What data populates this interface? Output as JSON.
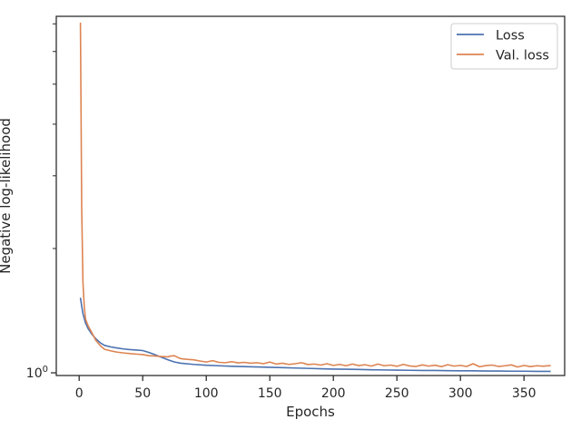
{
  "chart_data": {
    "type": "line",
    "title": "",
    "xlabel": "Epochs",
    "ylabel": "Negative log-likelihood",
    "xlim": [
      -18,
      382
    ],
    "x_ticks": [
      0,
      50,
      100,
      150,
      200,
      250,
      300,
      350
    ],
    "y_scale": "log",
    "ylim": [
      0.985,
      7.3
    ],
    "y_major_ticks": [
      {
        "value": 1,
        "label": "10",
        "exponent": "0"
      }
    ],
    "y_minor_ticks": [
      2,
      3,
      4,
      5,
      6,
      7
    ],
    "grid": false,
    "legend_position": "top-right",
    "colors": {
      "loss": "#4c72b0",
      "val_loss": "#dd8452",
      "axes": "#262626"
    },
    "series": [
      {
        "name": "Loss",
        "color": "#4c72b0",
        "x": [
          1,
          2,
          3,
          5,
          7,
          10,
          13,
          17,
          20,
          25,
          30,
          35,
          40,
          45,
          50,
          55,
          60,
          65,
          70,
          75,
          80,
          90,
          100,
          110,
          120,
          130,
          140,
          150,
          160,
          170,
          180,
          190,
          200,
          210,
          220,
          230,
          240,
          250,
          260,
          270,
          280,
          290,
          300,
          310,
          320,
          330,
          340,
          350,
          360,
          371
        ],
        "y": [
          1.52,
          1.45,
          1.39,
          1.32,
          1.28,
          1.24,
          1.21,
          1.18,
          1.165,
          1.155,
          1.148,
          1.142,
          1.138,
          1.135,
          1.132,
          1.12,
          1.105,
          1.09,
          1.075,
          1.062,
          1.055,
          1.048,
          1.043,
          1.04,
          1.037,
          1.035,
          1.033,
          1.031,
          1.029,
          1.027,
          1.025,
          1.023,
          1.021,
          1.02,
          1.019,
          1.017,
          1.016,
          1.015,
          1.014,
          1.013,
          1.013,
          1.012,
          1.011,
          1.011,
          1.01,
          1.01,
          1.009,
          1.009,
          1.008,
          1.008
        ]
      },
      {
        "name": "Val. loss",
        "color": "#dd8452",
        "x": [
          1,
          2,
          3,
          4,
          5,
          7,
          10,
          13,
          17,
          20,
          25,
          30,
          35,
          40,
          45,
          50,
          55,
          60,
          65,
          70,
          72,
          75,
          78,
          80,
          85,
          90,
          95,
          100,
          105,
          110,
          115,
          120,
          125,
          130,
          135,
          140,
          145,
          150,
          155,
          160,
          165,
          170,
          175,
          180,
          185,
          190,
          195,
          200,
          205,
          210,
          215,
          220,
          225,
          230,
          235,
          240,
          245,
          250,
          255,
          260,
          265,
          270,
          275,
          280,
          285,
          290,
          295,
          300,
          305,
          310,
          315,
          320,
          325,
          330,
          335,
          340,
          345,
          350,
          355,
          360,
          365,
          371
        ],
        "y": [
          7.05,
          2.5,
          1.65,
          1.45,
          1.35,
          1.3,
          1.25,
          1.2,
          1.16,
          1.14,
          1.13,
          1.122,
          1.117,
          1.113,
          1.11,
          1.107,
          1.1,
          1.098,
          1.095,
          1.093,
          1.098,
          1.1,
          1.088,
          1.082,
          1.078,
          1.075,
          1.068,
          1.062,
          1.07,
          1.06,
          1.058,
          1.064,
          1.057,
          1.06,
          1.055,
          1.058,
          1.052,
          1.062,
          1.05,
          1.055,
          1.048,
          1.052,
          1.058,
          1.047,
          1.05,
          1.044,
          1.052,
          1.042,
          1.048,
          1.04,
          1.05,
          1.041,
          1.046,
          1.038,
          1.05,
          1.04,
          1.044,
          1.037,
          1.048,
          1.039,
          1.036,
          1.045,
          1.038,
          1.043,
          1.035,
          1.046,
          1.038,
          1.042,
          1.036,
          1.052,
          1.034,
          1.041,
          1.044,
          1.036,
          1.04,
          1.045,
          1.033,
          1.042,
          1.035,
          1.04,
          1.038,
          1.041
        ]
      }
    ]
  }
}
